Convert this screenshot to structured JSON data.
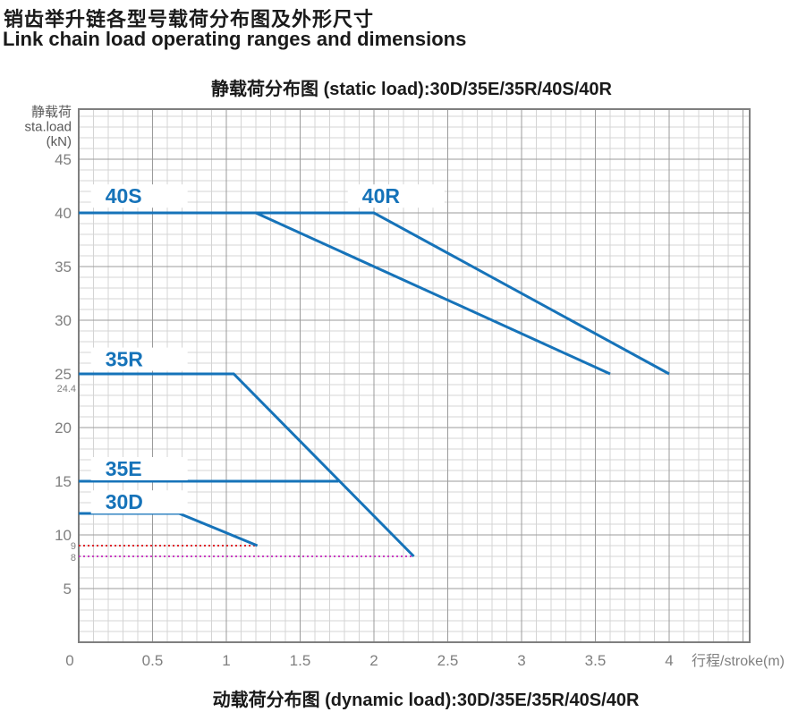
{
  "header": {
    "title_zh": "销齿举升链各型号载荷分布图及外形尺寸",
    "title_en": "Link chain load operating ranges and dimensions"
  },
  "chart_title": "静载荷分布图  (static load):30D/35E/35R/40S/40R",
  "bottom_caption": "动载荷分布图  (dynamic load):30D/35E/35R/40S/40R",
  "chart_data": {
    "type": "line",
    "title": "静载荷分布图 (static load):30D/35E/35R/40S/40R",
    "xlabel": "行程/stroke(m)",
    "ylabel_lines": [
      "静载荷",
      "sta.load",
      "(kN)"
    ],
    "xlim": [
      0,
      4.55
    ],
    "ylim": [
      0,
      49.7
    ],
    "x_major_step": 0.5,
    "x_minor_step": 0.1,
    "y_major_step": 5,
    "y_minor_step": 1,
    "grid": true,
    "legend_position": "inline-labels",
    "x_ticks": [
      {
        "v": 0,
        "label": "0"
      },
      {
        "v": 0.5,
        "label": "0.5"
      },
      {
        "v": 1,
        "label": "1"
      },
      {
        "v": 1.5,
        "label": "1.5"
      },
      {
        "v": 2,
        "label": "2"
      },
      {
        "v": 2.5,
        "label": "2.5"
      },
      {
        "v": 3,
        "label": "3"
      },
      {
        "v": 3.5,
        "label": "3.5"
      },
      {
        "v": 4,
        "label": "4"
      }
    ],
    "y_ticks": [
      {
        "v": 5,
        "label": "5"
      },
      {
        "v": 10,
        "label": "10"
      },
      {
        "v": 15,
        "label": "15"
      },
      {
        "v": 20,
        "label": "20"
      },
      {
        "v": 25,
        "label": "25"
      },
      {
        "v": 30,
        "label": "30"
      },
      {
        "v": 35,
        "label": "35"
      },
      {
        "v": 40,
        "label": "40"
      },
      {
        "v": 45,
        "label": "45"
      }
    ],
    "y_annotations": [
      {
        "text": "24.4",
        "value": 24.4,
        "dy": 13
      },
      {
        "text": "9",
        "value": 9,
        "dy": 4
      },
      {
        "text": "8",
        "value": 8,
        "dy": 5
      }
    ],
    "series": [
      {
        "name": "40S",
        "points": [
          [
            0,
            40
          ],
          [
            1.2,
            40
          ],
          [
            3.6,
            25
          ]
        ]
      },
      {
        "name": "40R",
        "points": [
          [
            0,
            40
          ],
          [
            2.0,
            40
          ],
          [
            4.0,
            25
          ]
        ]
      },
      {
        "name": "35R",
        "points": [
          [
            0,
            25
          ],
          [
            1.05,
            25
          ],
          [
            2.27,
            8
          ]
        ]
      },
      {
        "name": "35E",
        "points": [
          [
            0,
            15
          ],
          [
            1.76,
            15
          ]
        ]
      },
      {
        "name": "30D",
        "points": [
          [
            0,
            12
          ],
          [
            0.68,
            12
          ],
          [
            1.21,
            9
          ]
        ]
      }
    ],
    "series_labels": [
      {
        "text": "40S",
        "x": 0.18,
        "y": 40.9
      },
      {
        "text": "40R",
        "x": 1.92,
        "y": 40.9
      },
      {
        "text": "35R",
        "x": 0.18,
        "y": 25.7
      },
      {
        "text": "35E",
        "x": 0.18,
        "y": 15.5
      },
      {
        "text": "30D",
        "x": 0.18,
        "y": 12.4
      }
    ],
    "reference_lines": [
      {
        "value": 9,
        "x_start": 0,
        "x_end": 1.21,
        "color": "#e0242b",
        "style": "dotted"
      },
      {
        "value": 8,
        "x_start": 0,
        "x_end": 2.27,
        "color": "#c93fc3",
        "style": "dotted"
      }
    ],
    "colors": {
      "series_blue": "#1673b9",
      "ref_red": "#e0242b",
      "ref_magenta": "#c93fc3",
      "grid_minor": "#d4d4d4",
      "grid_major": "#9b9b9b",
      "axis_border": "#7f7f7f",
      "tick_text": "#7f7f7f",
      "axis_title_text": "#595959"
    }
  }
}
